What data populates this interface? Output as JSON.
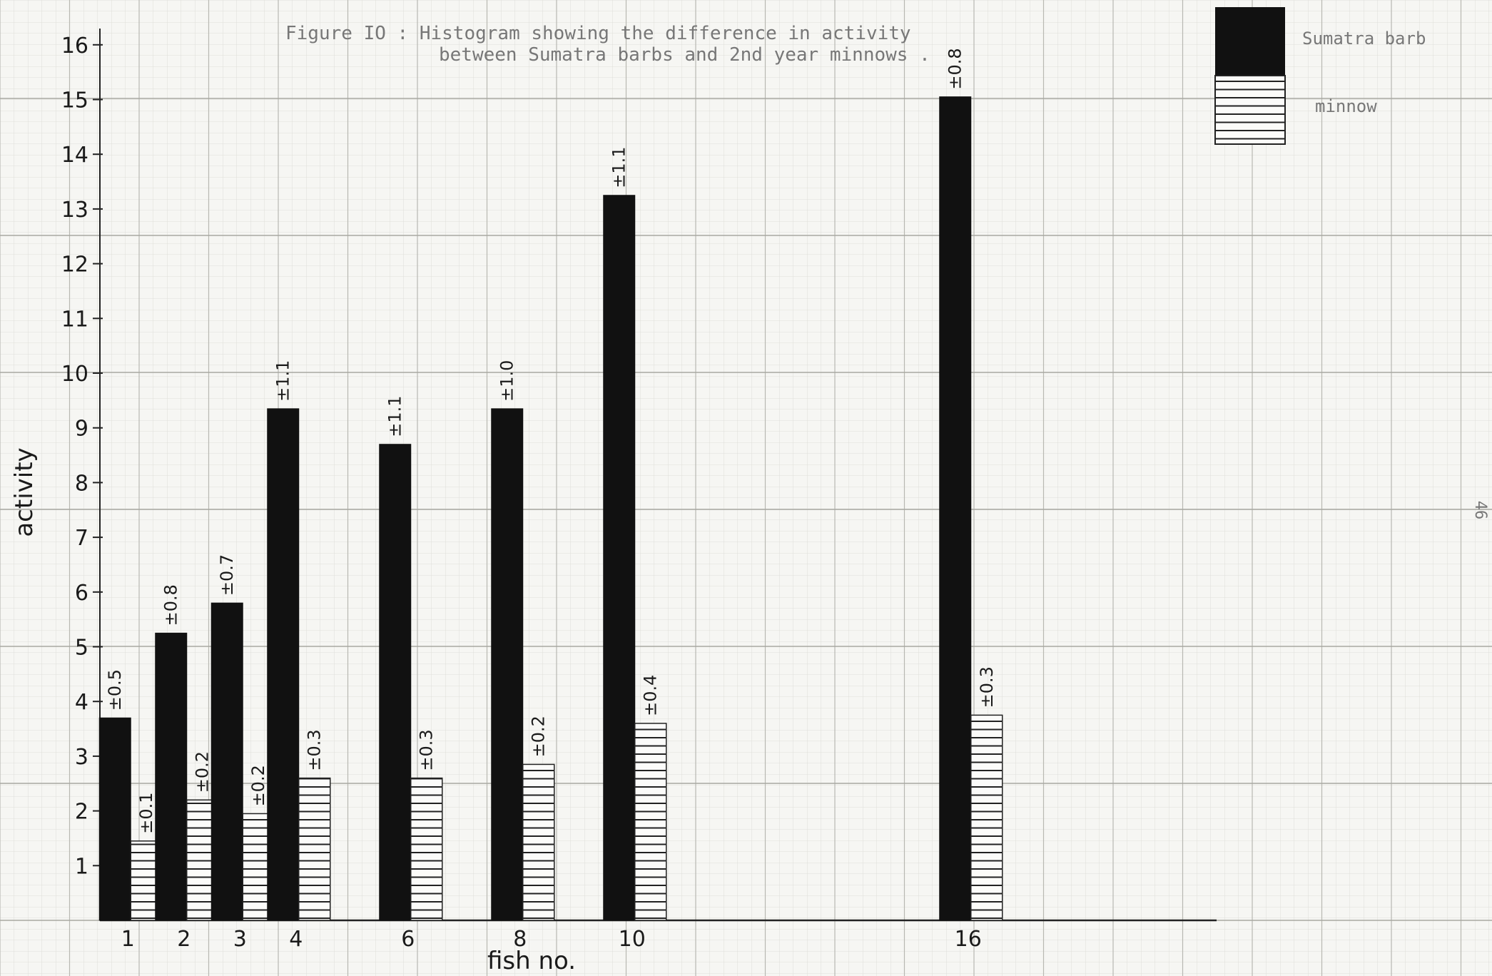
{
  "chart_data": {
    "type": "bar",
    "title_line1": "Figure IO : Histogram showing the difference in activity",
    "title_line2": "between Sumatra barbs and 2nd year minnows .",
    "xlabel": "fish no.",
    "ylabel": "activity",
    "page_number": "46",
    "ylim": [
      0,
      16.5
    ],
    "yticks": [
      "1",
      "2",
      "3",
      "4",
      "5",
      "6",
      "7",
      "8",
      "9",
      "10",
      "11",
      "12",
      "13",
      "14",
      "15",
      "16"
    ],
    "categories": [
      "1",
      "2",
      "3",
      "4",
      "6",
      "8",
      "10",
      "16"
    ],
    "category_positions": [
      1,
      2,
      3,
      4,
      6,
      8,
      10,
      16
    ],
    "legend_position": "top-right",
    "series": [
      {
        "name": "Sumatra barb",
        "fill": "#111111",
        "values": [
          3.7,
          5.25,
          5.8,
          9.35,
          8.7,
          9.35,
          13.25,
          15.05
        ],
        "errors": [
          "±0.5",
          "±0.8",
          "±0.7",
          "±1.1",
          "±1.1",
          "±1.0",
          "±1.1",
          "±0.8"
        ]
      },
      {
        "name": "minnow",
        "fill": "hatched",
        "values": [
          1.45,
          2.2,
          1.95,
          2.6,
          2.6,
          2.85,
          3.6,
          3.75
        ],
        "errors": [
          "±0.1",
          "±0.2",
          "±0.2",
          "±0.3",
          "±0.3",
          "±0.2",
          "±0.4",
          "±0.3"
        ]
      }
    ],
    "grid": true
  }
}
